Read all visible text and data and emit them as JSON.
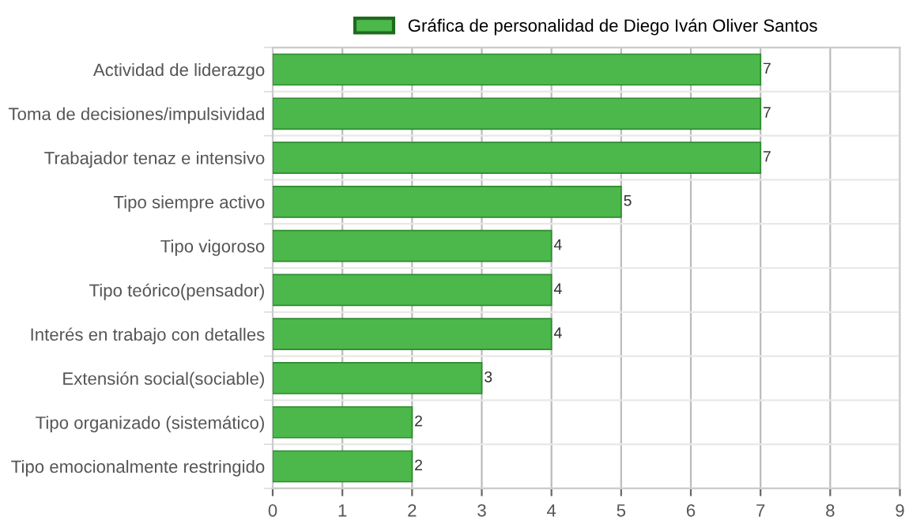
{
  "chart_data": {
    "type": "bar",
    "orientation": "horizontal",
    "categories": [
      "Actividad de liderazgo",
      "Toma de decisiones/impulsividad",
      "Trabajador tenaz e intensivo",
      "Tipo siempre activo",
      "Tipo vigoroso",
      "Tipo teórico(pensador)",
      "Interés en trabajo con detalles",
      "Extensión social(sociable)",
      "Tipo organizado (sistemático)",
      "Tipo emocionalmente restringido"
    ],
    "series": [
      {
        "name": "Gráfica de personalidad de Diego Iván Oliver Santos",
        "color": "#4cb84c",
        "values": [
          7,
          7,
          7,
          5,
          4,
          4,
          4,
          3,
          2,
          2
        ]
      }
    ],
    "xlim": [
      0,
      9
    ],
    "xticks": [
      0,
      1,
      2,
      3,
      4,
      5,
      6,
      7,
      8,
      9
    ],
    "grid": true,
    "legend": "top",
    "data_labels": true
  }
}
